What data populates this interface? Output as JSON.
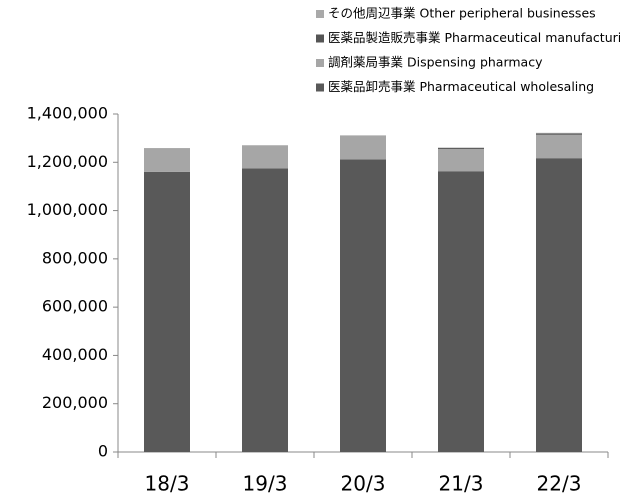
{
  "chart_data": {
    "type": "stacked_bar",
    "categories": [
      "18/3",
      "19/3",
      "20/3",
      "21/3",
      "22/3"
    ],
    "series": [
      {
        "name": "医薬品卸売事業 Pharmaceutical wholesaling",
        "color": "#595959",
        "values": [
          1160000,
          1175000,
          1212000,
          1163000,
          1217000
        ]
      },
      {
        "name": "調剤薬局事業 Dispensing pharmacy",
        "color": "#a6a6a6",
        "values": [
          97000,
          94000,
          98000,
          92000,
          97000
        ]
      },
      {
        "name": "医薬品製造販売事業 Pharmaceutical manufacturing and sales",
        "color": "#555555",
        "values": [
          0,
          0,
          0,
          4000,
          5000
        ]
      },
      {
        "name": "その他周辺事業 Other peripheral businesses",
        "color": "#a9a9a9",
        "values": [
          2000,
          2000,
          2000,
          2000,
          3000
        ]
      }
    ],
    "ylim": [
      0,
      1400000
    ],
    "yticks": [
      0,
      {
        "value": 200000,
        "label": "200,000"
      },
      {
        "value": 400000,
        "label": "400,000"
      },
      {
        "value": 600000,
        "label": "600,000"
      },
      {
        "value": 800000,
        "label": "800,000"
      },
      {
        "value": 1000000,
        "label": "1,000,000"
      },
      {
        "value": 1200000,
        "label": "1,200,000"
      },
      {
        "value": 1400000,
        "label": "1,400,000"
      }
    ],
    "legend": "top"
  }
}
